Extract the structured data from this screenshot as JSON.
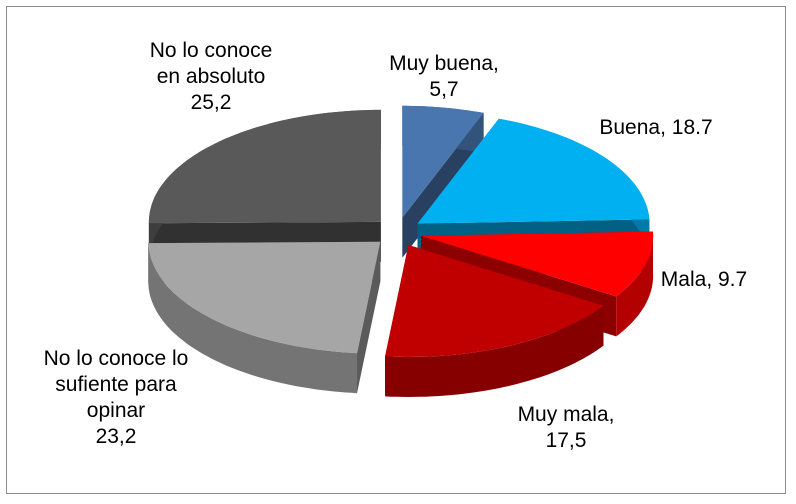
{
  "chart_data": {
    "type": "pie3d",
    "categories": [
      "Muy buena,",
      "Buena,",
      "Mala,",
      "Muy mala,",
      "No lo conoce lo sufiente para opinar",
      "No lo conoce en absoluto"
    ],
    "values": [
      5.7,
      18.7,
      9.7,
      17.5,
      23.2,
      25.2
    ],
    "value_labels": [
      "5,7",
      "18.7",
      "9.7",
      "17,5",
      "23,2",
      "25,2"
    ],
    "colors": [
      "#4a76b0",
      "#00b0f0",
      "#ff0000",
      "#c00000",
      "#a6a6a6",
      "#595959"
    ]
  }
}
